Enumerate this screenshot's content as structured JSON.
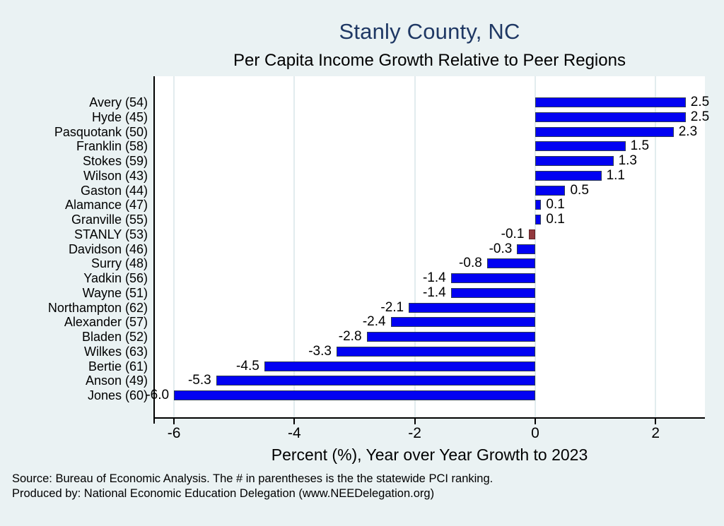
{
  "chart_data": {
    "type": "bar",
    "orientation": "horizontal",
    "title": "Stanly County, NC",
    "subtitle": "Per Capita Income Growth Relative to Peer Regions",
    "xlabel": "Percent (%), Year over Year Growth to 2023",
    "xlim": [
      -6.33,
      2.82
    ],
    "xticks": [
      -6,
      -4,
      -2,
      0,
      2
    ],
    "grid": "vertical gridlines at each x tick",
    "legend": "none",
    "categories": [
      "Avery (54)",
      "Hyde (45)",
      "Pasquotank (50)",
      "Franklin (58)",
      "Stokes (59)",
      "Wilson (43)",
      "Gaston (44)",
      "Alamance (47)",
      "Granville (55)",
      "STANLY (53)",
      "Davidson (46)",
      "Surry (48)",
      "Yadkin (56)",
      "Wayne (51)",
      "Northampton (62)",
      "Alexander (57)",
      "Bladen (52)",
      "Wilkes (63)",
      "Bertie (61)",
      "Anson (49)",
      "Jones (60)"
    ],
    "values": [
      2.5,
      2.5,
      2.3,
      1.5,
      1.3,
      1.1,
      0.5,
      0.1,
      0.1,
      -0.1,
      -0.3,
      -0.8,
      -1.4,
      -1.4,
      -2.1,
      -2.4,
      -2.8,
      -3.3,
      -4.5,
      -5.3,
      -6.0
    ],
    "value_labels": [
      "2.5",
      "2.5",
      "2.3",
      "1.5",
      "1.3",
      "1.1",
      "0.5",
      "0.1",
      "0.1",
      "-0.1",
      "-0.3",
      "-0.8",
      "-1.4",
      "-1.4",
      "-2.1",
      "-2.4",
      "-2.8",
      "-3.3",
      "-4.5",
      "-5.3",
      "-6.0"
    ],
    "highlight_category": "STANLY (53)",
    "highlight_index": 9
  },
  "colors": {
    "figure_background": "#eaf2f3",
    "plot_background": "#ffffff",
    "bar_fill": "#0202f2",
    "bar_border": "#2c3a55",
    "highlight_fill": "#92383d",
    "highlight_border": "#5f2327",
    "title_color": "#1f3864",
    "gridline": "#e2ecee",
    "axis": "#000000"
  },
  "notes": {
    "source_line": "Source: Bureau of Economic Analysis. The # in parentheses is the the statewide PCI ranking.",
    "produced_by_line": "Produced by: National Economic Education Delegation (www.NEEDelegation.org)"
  }
}
